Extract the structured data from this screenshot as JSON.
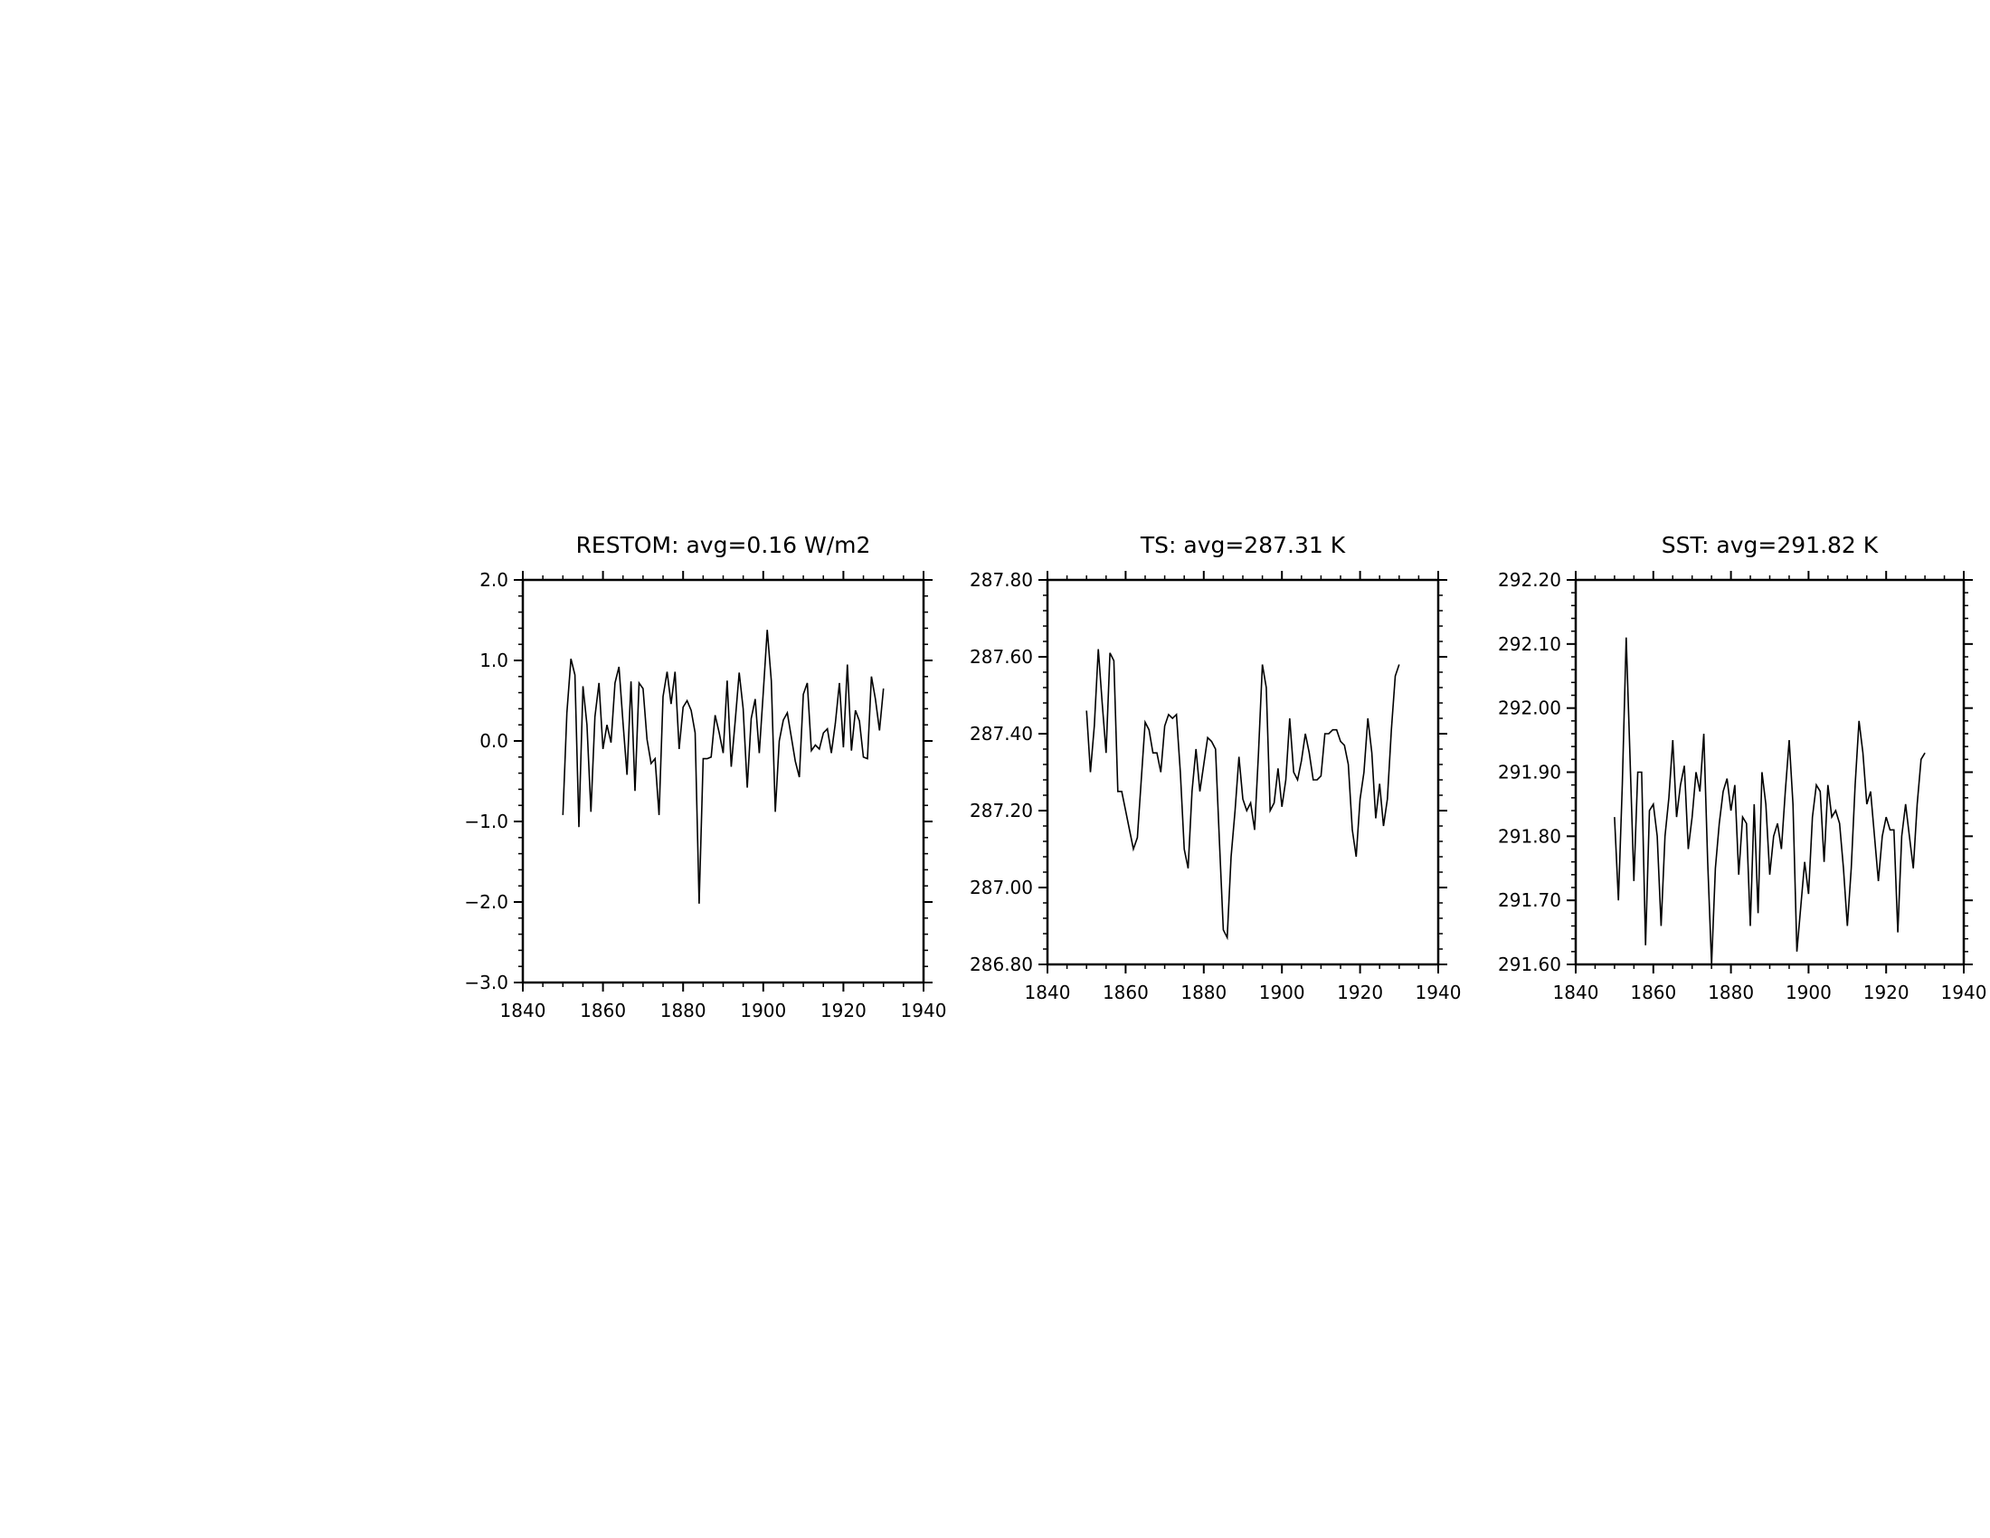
{
  "chart_data": [
    {
      "type": "line",
      "title": "RESTOM: avg=0.16 W/m2",
      "xlim": [
        1840,
        1940
      ],
      "ylim": [
        -3.0,
        2.0
      ],
      "x_ticks": [
        1840,
        1860,
        1880,
        1900,
        1920,
        1940
      ],
      "y_ticks": [
        2.0,
        1.0,
        0.0,
        -1.0,
        -2.0,
        -3.0
      ],
      "y_tick_labels": [
        "2.0",
        "1.0",
        "0.0",
        "−1.0",
        "−2.0",
        "−3.0"
      ],
      "x_start": 1850,
      "values": [
        -0.92,
        0.35,
        1.02,
        0.82,
        -1.07,
        0.68,
        0.2,
        -0.88,
        0.3,
        0.72,
        -0.1,
        0.2,
        -0.02,
        0.72,
        0.92,
        0.22,
        -0.42,
        0.74,
        -0.62,
        0.72,
        0.65,
        0.02,
        -0.28,
        -0.22,
        -0.92,
        0.55,
        0.86,
        0.46,
        0.86,
        -0.1,
        0.42,
        0.5,
        0.38,
        0.1,
        -2.02,
        -0.22,
        -0.22,
        -0.2,
        0.32,
        0.1,
        -0.15,
        0.75,
        -0.32,
        0.25,
        0.85,
        0.4,
        -0.58,
        0.28,
        0.52,
        -0.15,
        0.6,
        1.38,
        0.75,
        -0.88,
        0.0,
        0.26,
        0.35,
        0.05,
        -0.25,
        -0.45,
        0.58,
        0.72,
        -0.12,
        -0.05,
        -0.1,
        0.1,
        0.15,
        -0.15,
        0.22,
        0.72,
        -0.08,
        0.95,
        -0.12,
        0.38,
        0.25,
        -0.2,
        -0.22,
        0.8,
        0.52,
        0.13,
        0.65
      ]
    },
    {
      "type": "line",
      "title": "TS: avg=287.31 K",
      "xlim": [
        1840,
        1940
      ],
      "ylim": [
        286.8,
        287.8
      ],
      "x_ticks": [
        1840,
        1860,
        1880,
        1900,
        1920,
        1940
      ],
      "y_ticks": [
        287.8,
        287.6,
        287.4,
        287.2,
        287.0,
        286.8
      ],
      "y_tick_labels": [
        "287.80",
        "287.60",
        "287.40",
        "287.20",
        "287.00",
        "286.80"
      ],
      "x_start": 1850,
      "values": [
        287.46,
        287.3,
        287.42,
        287.62,
        287.48,
        287.35,
        287.61,
        287.59,
        287.25,
        287.25,
        287.2,
        287.15,
        287.1,
        287.13,
        287.28,
        287.43,
        287.41,
        287.35,
        287.35,
        287.3,
        287.42,
        287.45,
        287.44,
        287.45,
        287.3,
        287.1,
        287.05,
        287.25,
        287.36,
        287.25,
        287.32,
        287.39,
        287.38,
        287.36,
        287.12,
        286.89,
        286.87,
        287.08,
        287.2,
        287.34,
        287.23,
        287.2,
        287.22,
        287.15,
        287.35,
        287.58,
        287.52,
        287.2,
        287.22,
        287.31,
        287.21,
        287.28,
        287.44,
        287.3,
        287.28,
        287.33,
        287.4,
        287.35,
        287.28,
        287.28,
        287.29,
        287.4,
        287.4,
        287.41,
        287.41,
        287.38,
        287.37,
        287.32,
        287.15,
        287.08,
        287.23,
        287.3,
        287.44,
        287.35,
        287.18,
        287.27,
        287.16,
        287.23,
        287.41,
        287.55,
        287.58
      ]
    },
    {
      "type": "line",
      "title": "SST: avg=291.82 K",
      "xlim": [
        1840,
        1940
      ],
      "ylim": [
        291.6,
        292.2
      ],
      "x_ticks": [
        1840,
        1860,
        1880,
        1900,
        1920,
        1940
      ],
      "y_ticks": [
        292.2,
        292.1,
        292.0,
        291.9,
        291.8,
        291.7,
        291.6
      ],
      "y_tick_labels": [
        "292.20",
        "292.10",
        "292.00",
        "291.90",
        "291.80",
        "291.70",
        "291.60"
      ],
      "x_start": 1850,
      "values": [
        291.83,
        291.7,
        291.88,
        292.11,
        291.92,
        291.73,
        291.9,
        291.9,
        291.63,
        291.84,
        291.85,
        291.8,
        291.66,
        291.8,
        291.86,
        291.95,
        291.83,
        291.88,
        291.91,
        291.78,
        291.83,
        291.9,
        291.87,
        291.96,
        291.76,
        291.6,
        291.75,
        291.82,
        291.87,
        291.89,
        291.84,
        291.88,
        291.74,
        291.83,
        291.82,
        291.66,
        291.85,
        291.68,
        291.9,
        291.85,
        291.74,
        291.8,
        291.82,
        291.78,
        291.87,
        291.95,
        291.85,
        291.62,
        291.69,
        291.76,
        291.71,
        291.83,
        291.88,
        291.87,
        291.76,
        291.88,
        291.83,
        291.84,
        291.82,
        291.75,
        291.66,
        291.75,
        291.88,
        291.98,
        291.93,
        291.85,
        291.87,
        291.8,
        291.73,
        291.8,
        291.83,
        291.81,
        291.81,
        291.65,
        291.8,
        291.85,
        291.8,
        291.75,
        291.85,
        291.92,
        291.93
      ]
    }
  ]
}
